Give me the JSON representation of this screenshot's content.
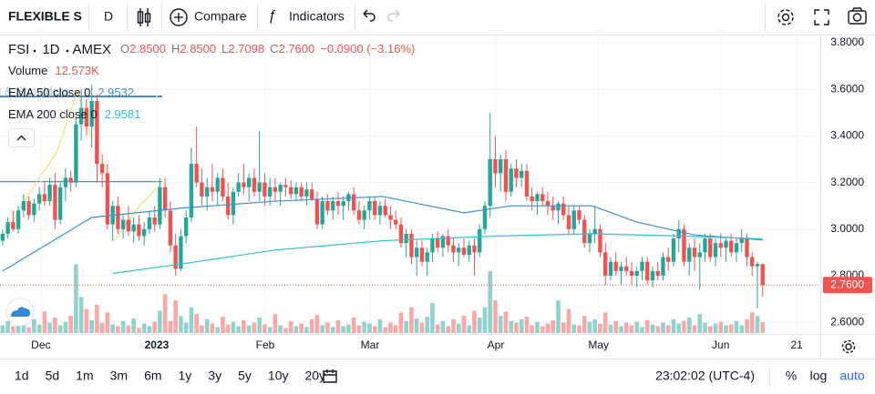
{
  "toolbar": {
    "symbol_name": "FLEXIBLE S",
    "interval": "D",
    "compare": "Compare",
    "indicators": "Indicators"
  },
  "legend": {
    "symbol": "FSI",
    "interval": "1D",
    "exchange": "AMEX",
    "ohlc": [
      [
        "O",
        "2.8500"
      ],
      [
        "H",
        "2.8500"
      ],
      [
        "L",
        "2.7098"
      ],
      [
        "C",
        "2.7600"
      ]
    ],
    "change": "−0.0900 (−3.16%)",
    "volume_label": "Volume",
    "volume": "12.573K",
    "ema": [
      {
        "label": "EMA 50 close 0",
        "value": "2.9532"
      },
      {
        "label": "EMA 200 close 0",
        "value": "2.9581"
      }
    ]
  },
  "drawing_label": "d & Shoulders",
  "chart_data": {
    "type": "candlestick",
    "xlim": [
      -0.5,
      156
    ],
    "xticks": [
      {
        "value": 7.3,
        "label": "Dec"
      },
      {
        "value": 29.4,
        "label": "2023"
      },
      {
        "value": 50.1,
        "label": "Feb"
      },
      {
        "value": 70.1,
        "label": "Mar"
      },
      {
        "value": 94.1,
        "label": "Apr"
      },
      {
        "value": 113.7,
        "label": "May"
      },
      {
        "value": 137,
        "label": "Jun"
      },
      {
        "value": 151.5,
        "label": "21"
      }
    ],
    "ylim": [
      2.55,
      3.835
    ],
    "yticks": [
      {
        "value": 2.6,
        "label": "2.6000"
      },
      {
        "value": 2.8,
        "label": "2.8000"
      },
      {
        "value": 3.0,
        "label": "3.0000"
      },
      {
        "value": 3.2,
        "label": "3.2000"
      },
      {
        "value": 3.4,
        "label": "3.4000"
      },
      {
        "value": 3.6,
        "label": "3.6000"
      },
      {
        "value": 3.8,
        "label": "3.8000"
      }
    ],
    "up_color": "#26a69a",
    "down_color": "#ef5350",
    "candles": [
      [
        2.95,
        3.0,
        2.93,
        2.98
      ],
      [
        2.98,
        3.05,
        2.96,
        3.03
      ],
      [
        3.03,
        3.08,
        2.99,
        3.0
      ],
      [
        3.0,
        3.1,
        2.98,
        3.08
      ],
      [
        3.08,
        3.15,
        3.05,
        3.12
      ],
      [
        3.12,
        3.14,
        3.04,
        3.06
      ],
      [
        3.06,
        3.13,
        3.03,
        3.11
      ],
      [
        3.11,
        3.18,
        3.08,
        3.15
      ],
      [
        3.15,
        3.2,
        3.1,
        3.12
      ],
      [
        3.12,
        3.22,
        3.1,
        3.19
      ],
      [
        3.19,
        3.24,
        3.0,
        3.04
      ],
      [
        3.04,
        3.2,
        3.02,
        3.18
      ],
      [
        3.18,
        3.26,
        3.12,
        3.22
      ],
      [
        3.22,
        3.25,
        3.16,
        3.2
      ],
      [
        3.2,
        3.48,
        3.18,
        3.45
      ],
      [
        3.45,
        3.6,
        3.38,
        3.52
      ],
      [
        3.52,
        3.56,
        3.4,
        3.44
      ],
      [
        3.44,
        3.62,
        3.35,
        3.55
      ],
      [
        3.55,
        3.58,
        3.2,
        3.28
      ],
      [
        3.28,
        3.32,
        3.18,
        3.24
      ],
      [
        3.24,
        3.28,
        3.0,
        3.02
      ],
      [
        3.02,
        3.12,
        2.95,
        3.1
      ],
      [
        3.1,
        3.14,
        2.98,
        3.0
      ],
      [
        3.0,
        3.06,
        2.96,
        3.04
      ],
      [
        3.04,
        3.1,
        2.97,
        2.99
      ],
      [
        2.99,
        3.05,
        2.94,
        3.02
      ],
      [
        3.02,
        3.06,
        2.95,
        2.97
      ],
      [
        2.97,
        3.03,
        2.93,
        3.0
      ],
      [
        3.0,
        3.08,
        2.98,
        3.05
      ],
      [
        3.05,
        3.1,
        2.99,
        3.02
      ],
      [
        3.02,
        3.22,
        3.0,
        3.18
      ],
      [
        3.18,
        3.22,
        3.05,
        3.08
      ],
      [
        3.08,
        3.12,
        2.9,
        2.93
      ],
      [
        2.93,
        2.98,
        2.8,
        2.83
      ],
      [
        2.83,
        3.0,
        2.82,
        2.97
      ],
      [
        2.97,
        3.08,
        2.94,
        3.05
      ],
      [
        3.05,
        3.35,
        3.03,
        3.28
      ],
      [
        3.28,
        3.44,
        3.18,
        3.2
      ],
      [
        3.2,
        3.26,
        3.1,
        3.14
      ],
      [
        3.14,
        3.22,
        3.08,
        3.18
      ],
      [
        3.18,
        3.28,
        3.12,
        3.16
      ],
      [
        3.16,
        3.24,
        3.1,
        3.22
      ],
      [
        3.22,
        3.26,
        3.12,
        3.14
      ],
      [
        3.14,
        3.2,
        3.04,
        3.06
      ],
      [
        3.06,
        3.18,
        3.02,
        3.16
      ],
      [
        3.16,
        3.24,
        3.14,
        3.2
      ],
      [
        3.2,
        3.28,
        3.15,
        3.18
      ],
      [
        3.18,
        3.24,
        3.12,
        3.22
      ],
      [
        3.22,
        3.26,
        3.14,
        3.16
      ],
      [
        3.16,
        3.42,
        3.12,
        3.2
      ],
      [
        3.2,
        3.24,
        3.1,
        3.14
      ],
      [
        3.14,
        3.22,
        3.1,
        3.18
      ],
      [
        3.18,
        3.22,
        3.12,
        3.16
      ],
      [
        3.16,
        3.2,
        3.1,
        3.19
      ],
      [
        3.19,
        3.22,
        3.14,
        3.18
      ],
      [
        3.18,
        3.21,
        3.13,
        3.15
      ],
      [
        3.15,
        3.2,
        3.12,
        3.18
      ],
      [
        3.18,
        3.2,
        3.12,
        3.14
      ],
      [
        3.14,
        3.2,
        3.1,
        3.17
      ],
      [
        3.17,
        3.2,
        3.12,
        3.13
      ],
      [
        3.13,
        3.16,
        3.0,
        3.02
      ],
      [
        3.02,
        3.14,
        3.0,
        3.12
      ],
      [
        3.12,
        3.15,
        3.06,
        3.08
      ],
      [
        3.08,
        3.14,
        3.04,
        3.12
      ],
      [
        3.12,
        3.16,
        3.06,
        3.1
      ],
      [
        3.1,
        3.14,
        3.04,
        3.12
      ],
      [
        3.12,
        3.16,
        3.08,
        3.15
      ],
      [
        3.15,
        3.18,
        3.06,
        3.08
      ],
      [
        3.08,
        3.12,
        3.02,
        3.04
      ],
      [
        3.04,
        3.1,
        3.0,
        3.08
      ],
      [
        3.08,
        3.14,
        3.04,
        3.12
      ],
      [
        3.12,
        3.14,
        3.04,
        3.06
      ],
      [
        3.06,
        3.12,
        3.02,
        3.1
      ],
      [
        3.1,
        3.13,
        3.05,
        3.06
      ],
      [
        3.06,
        3.1,
        3.0,
        3.04
      ],
      [
        3.04,
        3.08,
        3.0,
        3.02
      ],
      [
        3.02,
        3.05,
        2.92,
        2.94
      ],
      [
        2.94,
        3.0,
        2.88,
        2.98
      ],
      [
        2.98,
        3.0,
        2.85,
        2.88
      ],
      [
        2.88,
        2.95,
        2.8,
        2.92
      ],
      [
        2.92,
        2.95,
        2.84,
        2.86
      ],
      [
        2.86,
        2.92,
        2.8,
        2.9
      ],
      [
        2.9,
        2.98,
        2.86,
        2.96
      ],
      [
        2.96,
        2.99,
        2.9,
        2.92
      ],
      [
        2.92,
        2.98,
        2.88,
        2.97
      ],
      [
        2.97,
        3.0,
        2.9,
        2.93
      ],
      [
        2.93,
        2.96,
        2.86,
        2.9
      ],
      [
        2.9,
        2.94,
        2.84,
        2.92
      ],
      [
        2.92,
        2.96,
        2.88,
        2.89
      ],
      [
        2.89,
        2.95,
        2.86,
        2.93
      ],
      [
        2.93,
        2.96,
        2.8,
        2.9
      ],
      [
        2.9,
        3.02,
        2.88,
        3.0
      ],
      [
        3.0,
        3.12,
        2.98,
        3.1
      ],
      [
        3.1,
        3.5,
        3.05,
        3.3
      ],
      [
        3.3,
        3.4,
        3.18,
        3.24
      ],
      [
        3.24,
        3.32,
        3.16,
        3.3
      ],
      [
        3.3,
        3.34,
        3.12,
        3.16
      ],
      [
        3.16,
        3.28,
        3.14,
        3.26
      ],
      [
        3.26,
        3.3,
        3.18,
        3.22
      ],
      [
        3.22,
        3.28,
        3.18,
        3.25
      ],
      [
        3.25,
        3.28,
        3.12,
        3.14
      ],
      [
        3.14,
        3.18,
        3.08,
        3.12
      ],
      [
        3.12,
        3.16,
        3.06,
        3.15
      ],
      [
        3.15,
        3.18,
        3.1,
        3.12
      ],
      [
        3.12,
        3.16,
        3.06,
        3.1
      ],
      [
        3.1,
        3.14,
        3.04,
        3.08
      ],
      [
        3.08,
        3.12,
        3.02,
        3.11
      ],
      [
        3.11,
        3.14,
        3.04,
        3.06
      ],
      [
        3.06,
        3.1,
        2.98,
        3.0
      ],
      [
        3.0,
        3.1,
        2.98,
        3.08
      ],
      [
        3.08,
        3.1,
        3.02,
        3.04
      ],
      [
        3.04,
        3.06,
        2.92,
        2.94
      ],
      [
        2.94,
        3.0,
        2.9,
        2.98
      ],
      [
        2.98,
        3.1,
        2.94,
        3.0
      ],
      [
        3.0,
        3.02,
        2.88,
        2.9
      ],
      [
        2.9,
        2.94,
        2.76,
        2.8
      ],
      [
        2.8,
        2.88,
        2.78,
        2.86
      ],
      [
        2.86,
        2.9,
        2.8,
        2.82
      ],
      [
        2.82,
        2.86,
        2.76,
        2.84
      ],
      [
        2.84,
        2.88,
        2.8,
        2.82
      ],
      [
        2.82,
        2.86,
        2.76,
        2.8
      ],
      [
        2.8,
        2.84,
        2.75,
        2.82
      ],
      [
        2.82,
        2.88,
        2.78,
        2.86
      ],
      [
        2.86,
        2.88,
        2.76,
        2.78
      ],
      [
        2.78,
        2.84,
        2.75,
        2.82
      ],
      [
        2.82,
        2.86,
        2.78,
        2.8
      ],
      [
        2.8,
        2.9,
        2.78,
        2.88
      ],
      [
        2.88,
        2.92,
        2.82,
        2.86
      ],
      [
        2.86,
        2.98,
        2.84,
        2.96
      ],
      [
        2.96,
        3.04,
        2.9,
        3.0
      ],
      [
        3.0,
        3.02,
        2.84,
        2.86
      ],
      [
        2.86,
        2.94,
        2.8,
        2.92
      ],
      [
        2.92,
        2.96,
        2.82,
        2.88
      ],
      [
        2.88,
        2.94,
        2.74,
        2.9
      ],
      [
        2.9,
        2.98,
        2.86,
        2.96
      ],
      [
        2.96,
        2.98,
        2.86,
        2.88
      ],
      [
        2.88,
        2.96,
        2.84,
        2.94
      ],
      [
        2.94,
        2.98,
        2.88,
        2.92
      ],
      [
        2.92,
        2.96,
        2.86,
        2.95
      ],
      [
        2.95,
        2.98,
        2.88,
        2.9
      ],
      [
        2.9,
        2.96,
        2.86,
        2.94
      ],
      [
        2.94,
        3.0,
        2.9,
        2.96
      ],
      [
        2.96,
        2.98,
        2.84,
        2.88
      ],
      [
        2.88,
        2.9,
        2.8,
        2.84
      ],
      [
        2.84,
        2.86,
        2.66,
        2.85
      ],
      [
        2.85,
        2.85,
        2.7098,
        2.76
      ]
    ],
    "volume_ylim": [
      0,
      90000
    ],
    "volumes": [
      9000,
      14000,
      8000,
      22000,
      11000,
      7000,
      16000,
      10000,
      25000,
      12000,
      18000,
      9000,
      13000,
      20000,
      80000,
      42000,
      28000,
      15000,
      33000,
      12000,
      24000,
      10000,
      8000,
      14000,
      9000,
      17000,
      6000,
      11000,
      8000,
      13000,
      26000,
      45000,
      14000,
      38000,
      20000,
      12000,
      30000,
      22000,
      9000,
      16000,
      11000,
      7000,
      19000,
      10000,
      13000,
      8000,
      15000,
      9000,
      12000,
      18000,
      10000,
      7000,
      22000,
      9000,
      6000,
      14000,
      8000,
      11000,
      7000,
      16000,
      21000,
      9000,
      12000,
      7000,
      15000,
      8000,
      10000,
      18000,
      9000,
      13000,
      11000,
      8000,
      16000,
      7000,
      12000,
      9000,
      24000,
      14000,
      30000,
      17000,
      12000,
      19000,
      35000,
      10000,
      14000,
      8000,
      16000,
      11000,
      20000,
      9000,
      26000,
      18000,
      30000,
      72000,
      38000,
      20000,
      25000,
      14000,
      12000,
      16000,
      19000,
      9000,
      13000,
      8000,
      11000,
      15000,
      38000,
      12000,
      28000,
      10000,
      9000,
      20000,
      13000,
      16000,
      11000,
      24000,
      10000,
      14000,
      8000,
      12000,
      9000,
      13000,
      7000,
      15000,
      10000,
      8000,
      12000,
      9000,
      16000,
      11000,
      14000,
      18000,
      9000,
      22000,
      12000,
      8000,
      11000,
      13000,
      9000,
      10000,
      14000,
      9000,
      16000,
      24000,
      20000,
      12573
    ],
    "series": [
      {
        "name": "EMA 50",
        "color": "#3d8fd6",
        "x": [
          0,
          17,
          34,
          52,
          72.5,
          88,
          97,
          112.5,
          121,
          132,
          145
        ],
        "values": [
          2.82,
          3.05,
          3.09,
          3.12,
          3.14,
          3.07,
          3.1,
          3.1,
          3.03,
          2.975,
          2.9532
        ]
      },
      {
        "name": "EMA 200",
        "color": "#2bc4d0",
        "x": [
          21,
          34,
          52,
          72.5,
          94,
          112.5,
          130,
          145
        ],
        "values": [
          2.81,
          2.85,
          2.91,
          2.95,
          2.97,
          2.98,
          2.97,
          2.9581
        ]
      }
    ],
    "last_price": 2.76,
    "last_price_label": "2.7600"
  },
  "bottom_bar": {
    "ranges": [
      "1d",
      "5d",
      "1m",
      "3m",
      "6m",
      "1y",
      "3y",
      "5y",
      "10y",
      "20y"
    ],
    "time": "23:02:02 (UTC-4)",
    "percent": "%",
    "log": "log",
    "auto": "auto"
  }
}
